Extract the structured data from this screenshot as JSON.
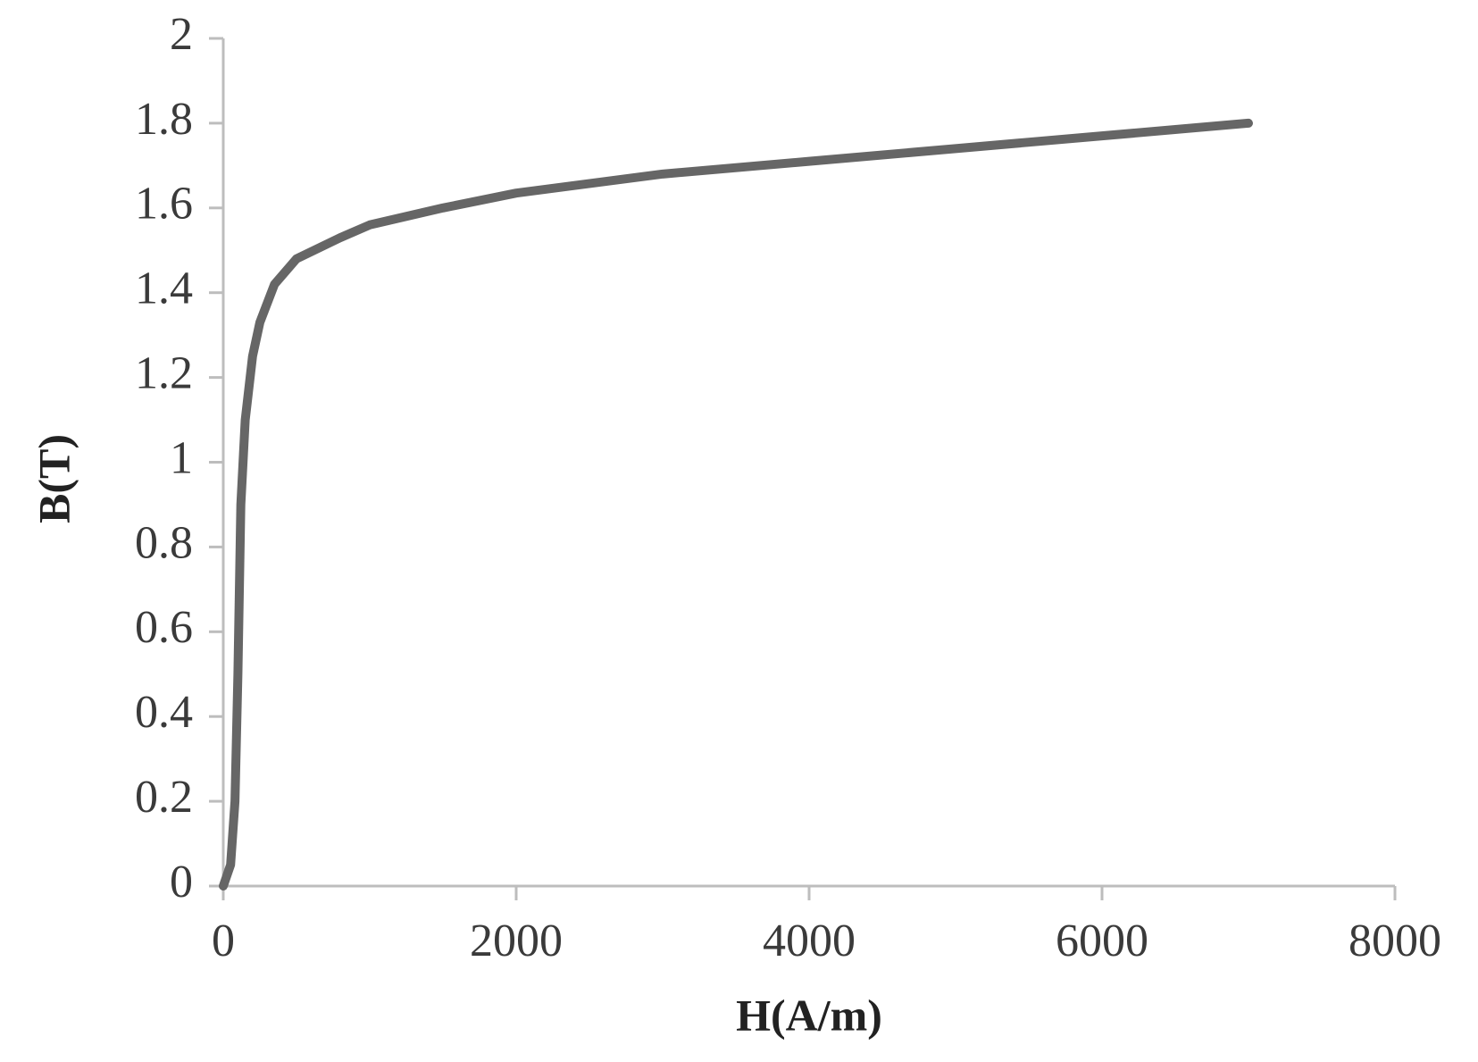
{
  "chart_data": {
    "type": "line",
    "x_label": "H(A/m)",
    "y_label": "B(T)",
    "x": [
      0,
      50,
      80,
      100,
      120,
      150,
      200,
      250,
      350,
      500,
      800,
      1000,
      1500,
      2000,
      3000,
      4000,
      5000,
      6000,
      7000
    ],
    "series": [
      {
        "color": "#666666",
        "values": [
          0,
          0.05,
          0.2,
          0.5,
          0.9,
          1.1,
          1.25,
          1.33,
          1.42,
          1.48,
          1.53,
          1.56,
          1.6,
          1.635,
          1.68,
          1.71,
          1.74,
          1.77,
          1.8
        ]
      }
    ],
    "xlim": [
      0,
      8000
    ],
    "xticks": [
      0,
      2000,
      4000,
      6000,
      8000
    ],
    "ylim": [
      0,
      2
    ],
    "yticks": [
      0,
      0.2,
      0.4,
      0.6,
      0.8,
      1,
      1.2,
      1.4,
      1.6,
      1.8,
      2
    ],
    "grid": false
  }
}
